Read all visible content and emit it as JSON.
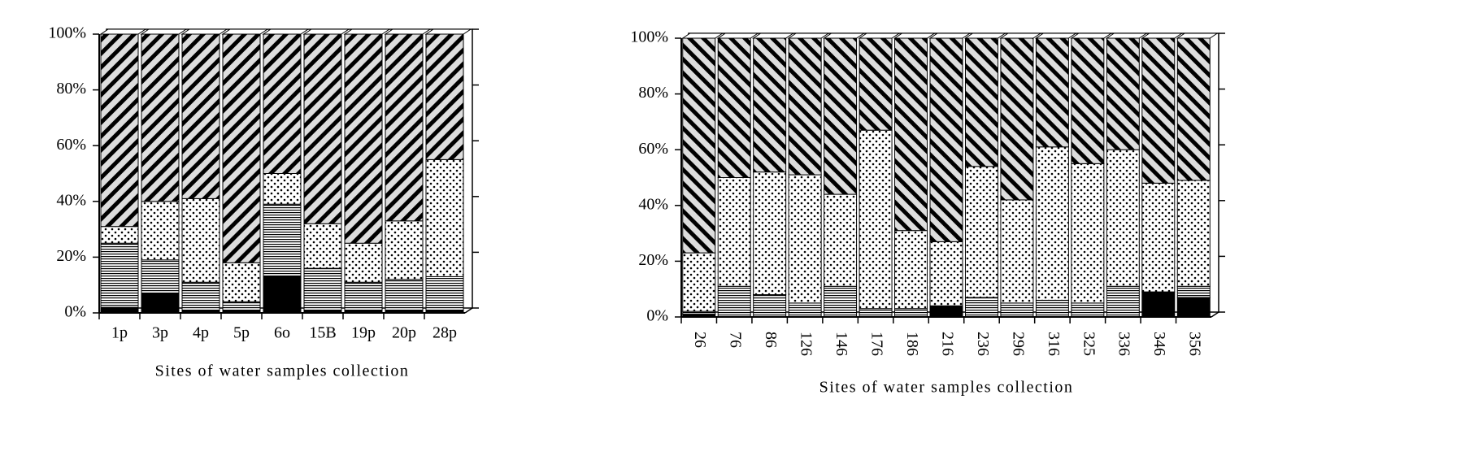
{
  "chart_data": [
    {
      "type": "bar",
      "stacked": true,
      "x_label": "Sites of water samples collection",
      "categories": [
        "1p",
        "3p",
        "4p",
        "5p",
        "6o",
        "15B",
        "19p",
        "20p",
        "28p"
      ],
      "series": [
        {
          "color": "#000000",
          "pattern": "solid",
          "values": [
            2,
            7,
            1,
            1,
            13,
            1,
            1,
            1,
            1
          ]
        },
        {
          "color": "#000000",
          "pattern": "hlines",
          "values": [
            23,
            12,
            10,
            3,
            26,
            15,
            10,
            11,
            12
          ]
        },
        {
          "color": "#000000",
          "pattern": "dots",
          "values": [
            6,
            21,
            30,
            14,
            11,
            16,
            14,
            21,
            42
          ]
        },
        {
          "color": "#000000",
          "pattern": "diag-back",
          "values": [
            69,
            60,
            59,
            82,
            50,
            68,
            75,
            67,
            45
          ]
        }
      ],
      "ylim": [
        0,
        100
      ],
      "yticks": [
        {
          "value": 0,
          "label": "0%"
        },
        {
          "value": 20,
          "label": "20%"
        },
        {
          "value": 40,
          "label": "40%"
        },
        {
          "value": 60,
          "label": "60%"
        },
        {
          "value": 80,
          "label": "80%"
        },
        {
          "value": 100,
          "label": "100%"
        }
      ],
      "x_label_rotation": 0
    },
    {
      "type": "bar",
      "stacked": true,
      "x_label": "Sites of water samples collection",
      "categories": [
        "26",
        "76",
        "86",
        "126",
        "146",
        "176",
        "186",
        "216",
        "236",
        "296",
        "316",
        "325",
        "336",
        "346",
        "356"
      ],
      "series": [
        {
          "color": "#000000",
          "pattern": "solid",
          "values": [
            1,
            0,
            0,
            0,
            0,
            0,
            0,
            4,
            0,
            0,
            0,
            0,
            0,
            9,
            7
          ]
        },
        {
          "color": "#000000",
          "pattern": "hlines",
          "values": [
            1,
            11,
            8,
            5,
            11,
            3,
            3,
            0,
            7,
            5,
            6,
            5,
            11,
            0,
            4
          ]
        },
        {
          "color": "#000000",
          "pattern": "dots",
          "values": [
            21,
            39,
            44,
            46,
            33,
            64,
            28,
            23,
            47,
            37,
            55,
            50,
            49,
            39,
            38
          ]
        },
        {
          "color": "#000000",
          "pattern": "diag-fwd",
          "values": [
            77,
            50,
            48,
            49,
            56,
            33,
            69,
            73,
            46,
            58,
            39,
            45,
            40,
            52,
            51
          ]
        }
      ],
      "ylim": [
        0,
        100
      ],
      "yticks": [
        {
          "value": 0,
          "label": "0%"
        },
        {
          "value": 20,
          "label": "20%"
        },
        {
          "value": 40,
          "label": "40%"
        },
        {
          "value": 60,
          "label": "60%"
        },
        {
          "value": 80,
          "label": "80%"
        },
        {
          "value": 100,
          "label": "100%"
        }
      ],
      "x_label_rotation": 90
    }
  ]
}
